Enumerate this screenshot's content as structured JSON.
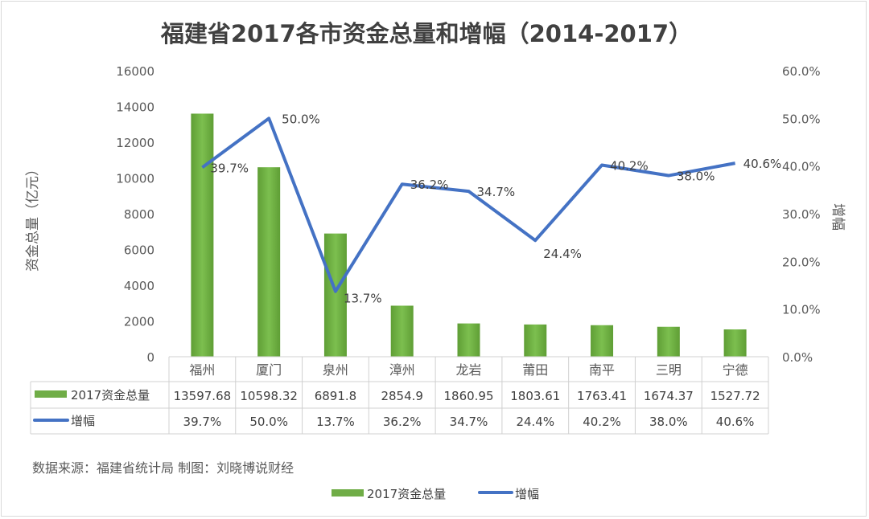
{
  "chart_data": {
    "type": "bar+line",
    "title": "福建省2017各市资金总量和增幅（2014-2017）",
    "ylabel": "资金总量（亿元）",
    "y2label": "增幅",
    "ylim": [
      0,
      16000
    ],
    "y2lim": [
      0,
      0.6
    ],
    "yticks": [
      "0",
      "2000",
      "4000",
      "6000",
      "8000",
      "10000",
      "12000",
      "14000",
      "16000"
    ],
    "y2ticks": [
      "0.0%",
      "10.0%",
      "20.0%",
      "30.0%",
      "40.0%",
      "50.0%",
      "60.0%"
    ],
    "grid": false,
    "categories": [
      "福州",
      "厦门",
      "泉州",
      "漳州",
      "龙岩",
      "莆田",
      "南平",
      "三明",
      "宁德"
    ],
    "series": [
      {
        "name": "2017资金总量",
        "type": "bar",
        "color": "#70ad47",
        "values": [
          13597.68,
          10598.32,
          6891.8,
          2854.9,
          1860.95,
          1803.61,
          1763.41,
          1674.37,
          1527.72
        ],
        "labels": [
          "13597.68",
          "10598.32",
          "6891.8",
          "2854.9",
          "1860.95",
          "1803.61",
          "1763.41",
          "1674.37",
          "1527.72"
        ]
      },
      {
        "name": "增幅",
        "type": "line",
        "axis": "right",
        "color": "#4472c4",
        "values": [
          0.397,
          0.5,
          0.137,
          0.362,
          0.347,
          0.244,
          0.402,
          0.38,
          0.406
        ],
        "labels": [
          "39.7%",
          "50.0%",
          "13.7%",
          "36.2%",
          "34.7%",
          "24.4%",
          "40.2%",
          "38.0%",
          "40.6%"
        ]
      }
    ],
    "data_table": true,
    "legend": "bottom",
    "source_note": "数据来源：福建省统计局 制图：刘晓博说财经"
  }
}
